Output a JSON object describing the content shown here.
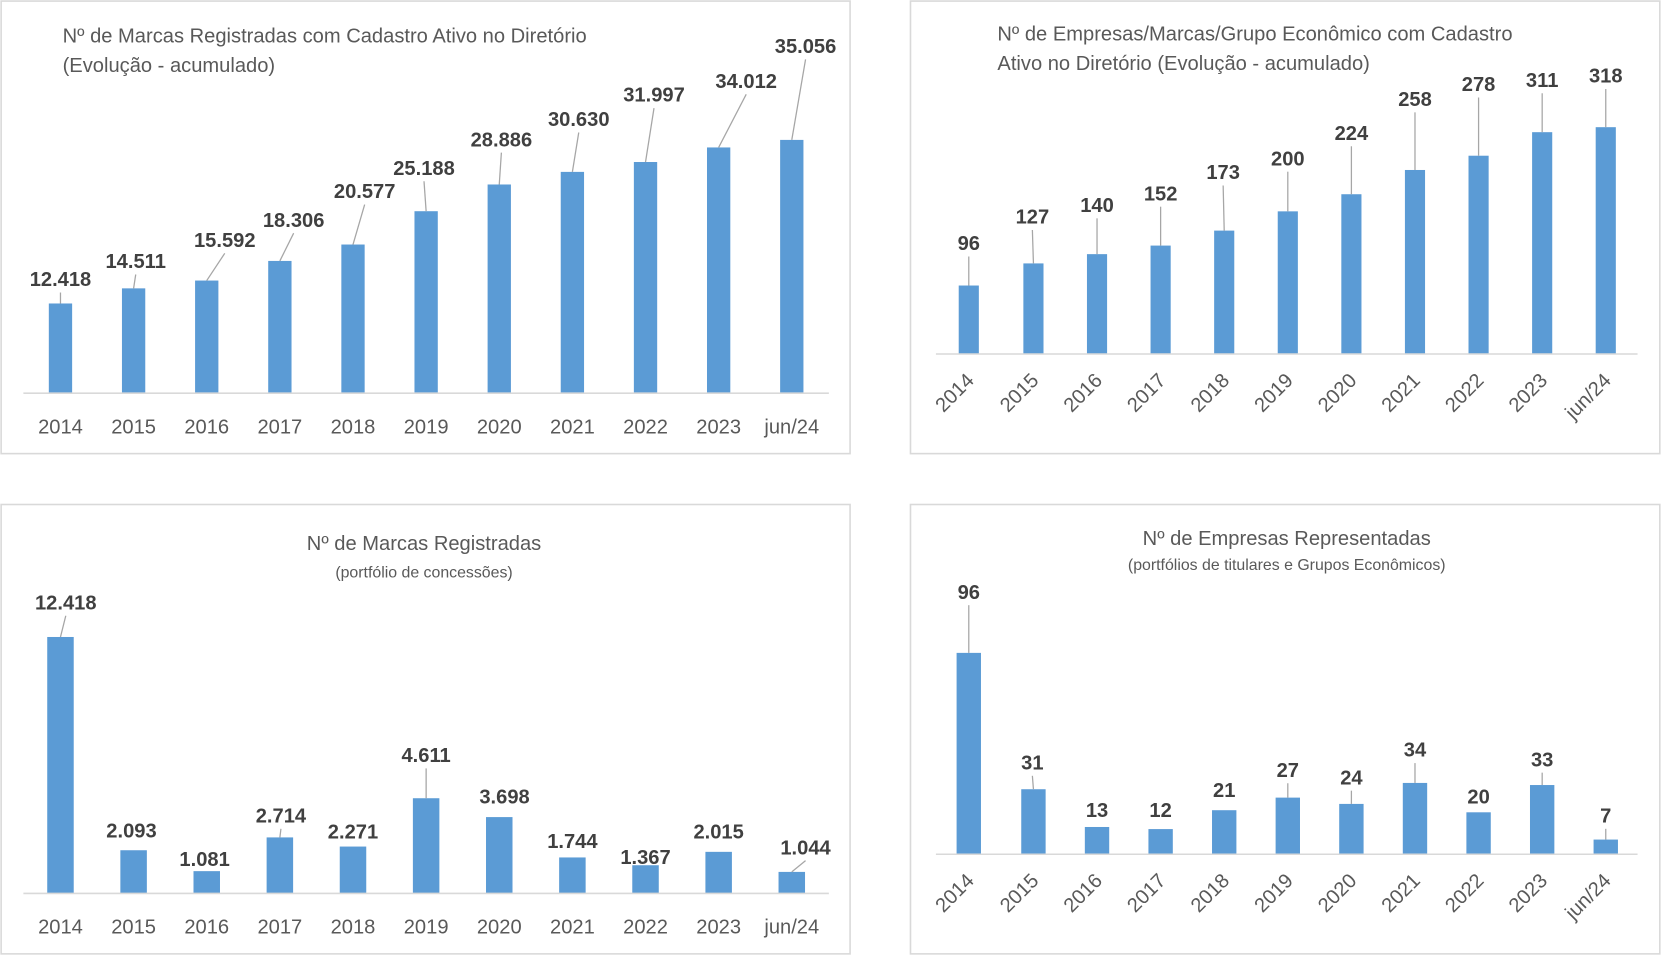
{
  "chart_data": [
    {
      "type": "bar",
      "title": "Nº de Marcas Registradas com Cadastro Ativo no Diretório",
      "title_line2": "(Evolução - acumulado)",
      "categories": [
        "2014",
        "2015",
        "2016",
        "2017",
        "2018",
        "2019",
        "2020",
        "2021",
        "2022",
        "2023",
        "jun/24"
      ],
      "values": [
        12418,
        14511,
        15592,
        18306,
        20577,
        25188,
        28886,
        30630,
        31997,
        34012,
        35056
      ],
      "labels": [
        "12.418",
        "14.511",
        "15.592",
        "18.306",
        "20.577",
        "25.188",
        "28.886",
        "30.630",
        "31.997",
        "34.012",
        "35.056"
      ],
      "ylim": [
        0,
        35056
      ],
      "grid": false,
      "color": "#5b9bd5"
    },
    {
      "type": "bar",
      "title": "Nº de Empresas/Marcas/Grupo Econômico com Cadastro",
      "title_line2": "Ativo no Diretório (Evolução -  acumulado)",
      "categories": [
        "2014",
        "2015",
        "2016",
        "2017",
        "2018",
        "2019",
        "2020",
        "2021",
        "2022",
        "2023",
        "jun/24"
      ],
      "values": [
        96,
        127,
        140,
        152,
        173,
        200,
        224,
        258,
        278,
        311,
        318
      ],
      "labels": [
        "96",
        "127",
        "140",
        "152",
        "173",
        "200",
        "224",
        "258",
        "278",
        "311",
        "318"
      ],
      "ylim": [
        0,
        318
      ],
      "grid": false,
      "color": "#5b9bd5"
    },
    {
      "type": "bar",
      "title": "Nº de Marcas Registradas",
      "title_line2": "(portfólio de concessões)",
      "categories": [
        "2014",
        "2015",
        "2016",
        "2017",
        "2018",
        "2019",
        "2020",
        "2021",
        "2022",
        "2023",
        "jun/24"
      ],
      "values": [
        12418,
        2093,
        1081,
        2714,
        2271,
        4611,
        3698,
        1744,
        1367,
        2015,
        1044
      ],
      "labels": [
        "12.418",
        "2.093",
        "1.081",
        "2.714",
        "2.271",
        "4.611",
        "3.698",
        "1.744",
        "1.367",
        "2.015",
        "1.044"
      ],
      "ylim": [
        0,
        12418
      ],
      "grid": false,
      "color": "#5b9bd5"
    },
    {
      "type": "bar",
      "title": "Nº de Empresas Representadas",
      "title_line2": "(portfólios de titulares e Grupos Econômicos)",
      "categories": [
        "2014",
        "2015",
        "2016",
        "2017",
        "2018",
        "2019",
        "2020",
        "2021",
        "2022",
        "2023",
        "jun/24"
      ],
      "values": [
        96,
        31,
        13,
        12,
        21,
        27,
        24,
        34,
        20,
        33,
        7
      ],
      "labels": [
        "96",
        "31",
        "13",
        "12",
        "21",
        "27",
        "24",
        "34",
        "20",
        "33",
        "7"
      ],
      "ylim": [
        0,
        96
      ],
      "grid": false,
      "color": "#5b9bd5"
    }
  ]
}
